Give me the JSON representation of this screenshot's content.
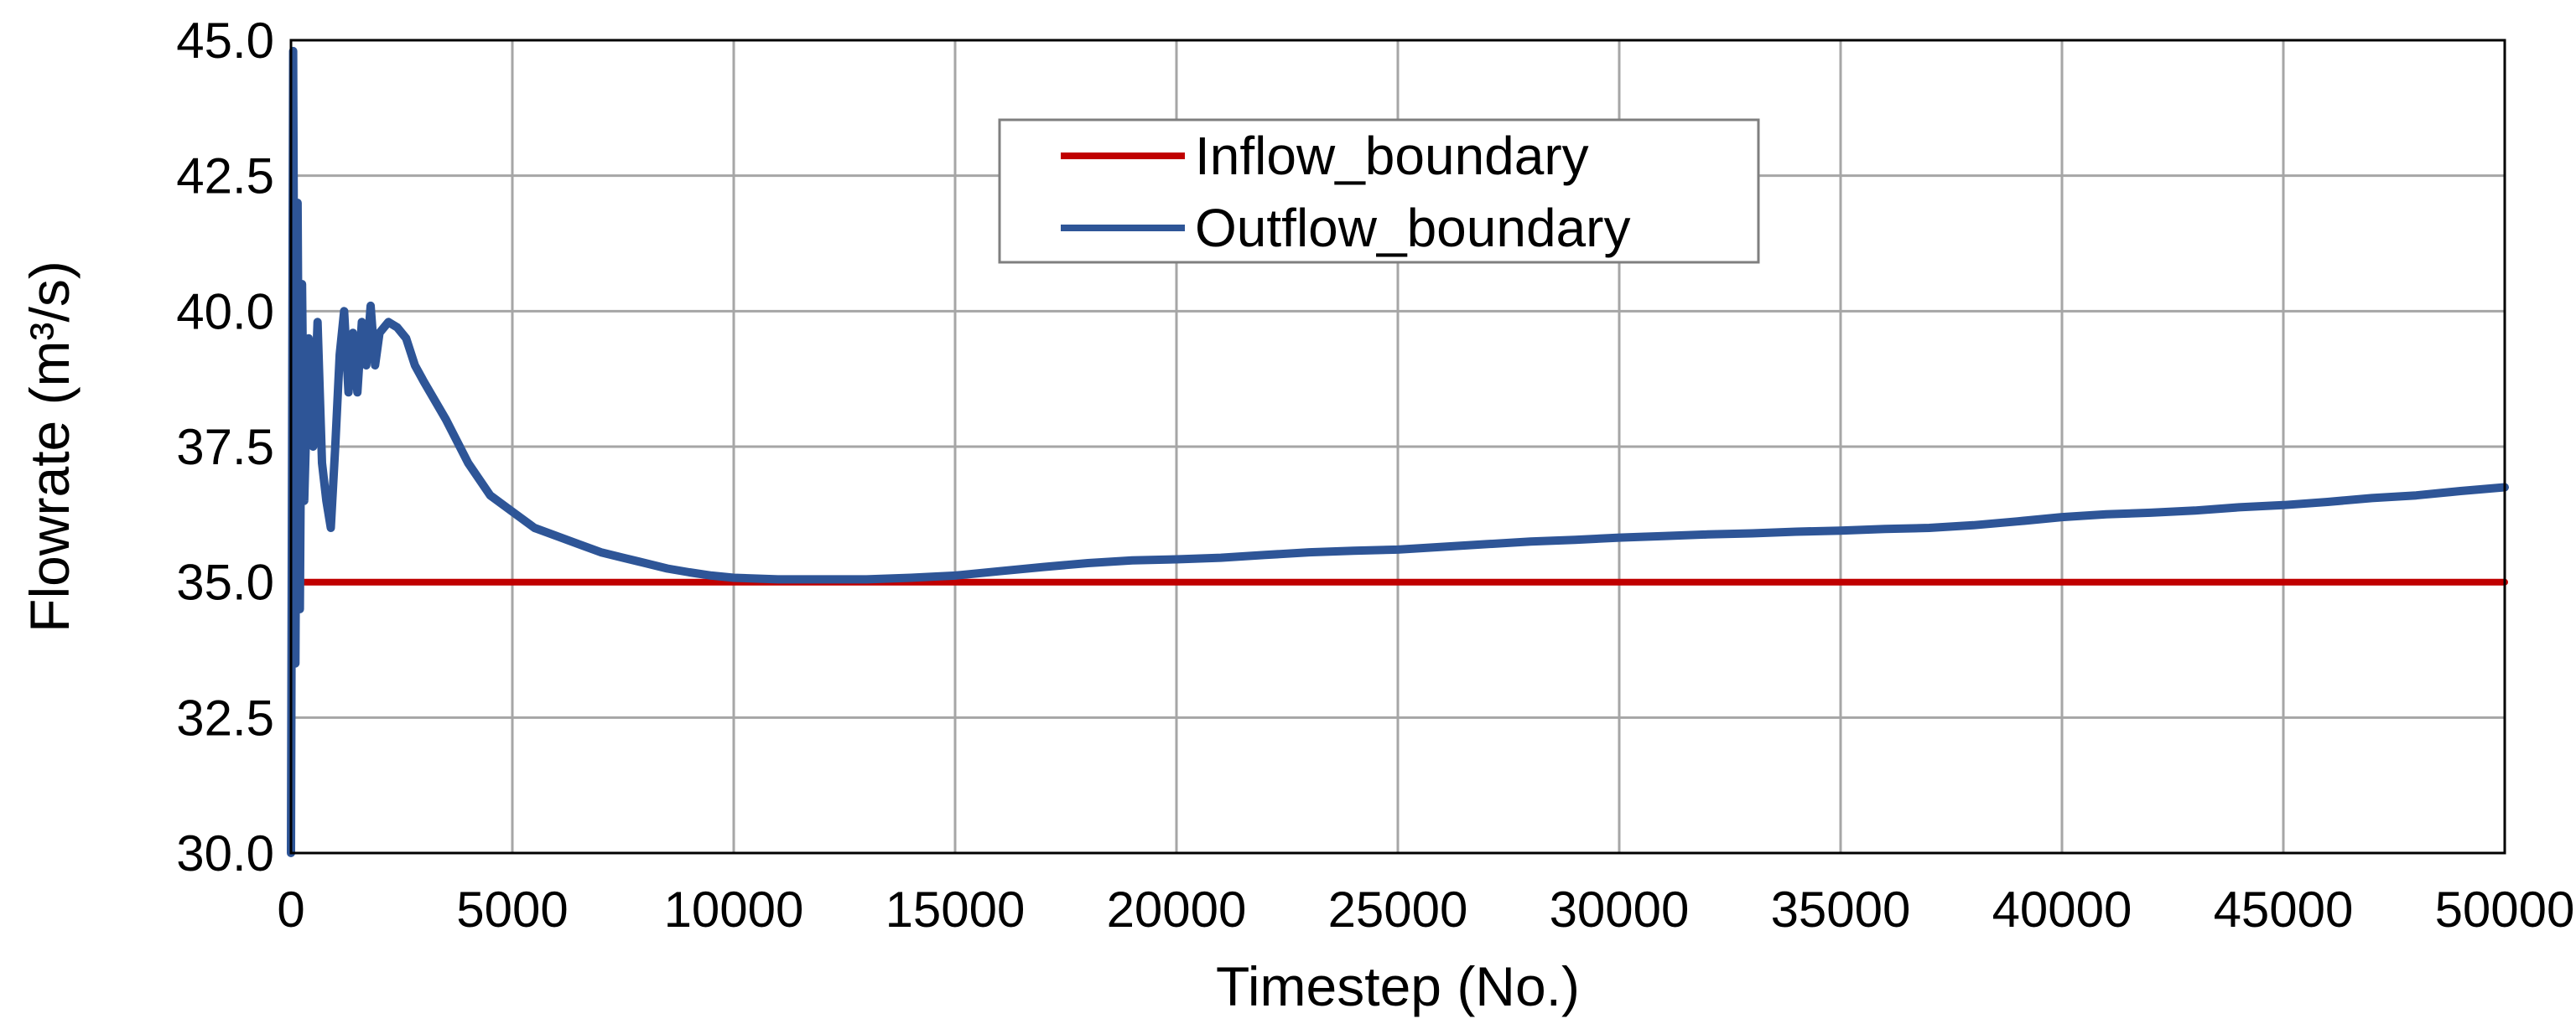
{
  "chart_data": {
    "type": "line",
    "title": "",
    "xlabel": "Timestep (No.)",
    "ylabel": "Flowrate (m³/s)",
    "xlim": [
      0,
      50000
    ],
    "ylim": [
      30.0,
      45.0
    ],
    "x_ticks": [
      "0",
      "5000",
      "10000",
      "15000",
      "20000",
      "25000",
      "30000",
      "35000",
      "40000",
      "45000",
      "50000"
    ],
    "y_ticks": [
      "30.0",
      "32.5",
      "35.0",
      "37.5",
      "40.0",
      "42.5",
      "45.0"
    ],
    "grid": true,
    "legend_position": "top-center",
    "series": [
      {
        "name": "Inflow_boundary",
        "color": "#c00000",
        "x": [
          0,
          50000
        ],
        "y": [
          35.0,
          35.0
        ]
      },
      {
        "name": "Outflow_boundary",
        "color": "#2e5597",
        "x": [
          0,
          50,
          100,
          150,
          200,
          250,
          300,
          400,
          500,
          600,
          700,
          800,
          900,
          1000,
          1100,
          1200,
          1300,
          1400,
          1500,
          1600,
          1700,
          1800,
          1900,
          2000,
          2200,
          2400,
          2600,
          2800,
          3000,
          3500,
          4000,
          4500,
          5000,
          5500,
          6000,
          6500,
          7000,
          7500,
          8000,
          8500,
          9000,
          9500,
          10000,
          11000,
          12000,
          13000,
          14000,
          15000,
          16000,
          17000,
          18000,
          19000,
          20000,
          21000,
          22000,
          23000,
          24000,
          25000,
          26000,
          27000,
          28000,
          29000,
          30000,
          31000,
          32000,
          33000,
          34000,
          35000,
          36000,
          37000,
          38000,
          39000,
          40000,
          41000,
          42000,
          43000,
          44000,
          45000,
          46000,
          47000,
          48000,
          49000,
          50000
        ],
        "y": [
          30.0,
          44.8,
          33.5,
          42.0,
          34.5,
          40.5,
          36.5,
          39.5,
          37.5,
          39.8,
          37.2,
          36.5,
          36.0,
          37.5,
          39.2,
          40.0,
          38.5,
          39.6,
          38.5,
          39.8,
          39.0,
          40.1,
          39.0,
          39.6,
          39.8,
          39.7,
          39.5,
          39.0,
          38.7,
          38.0,
          37.2,
          36.6,
          36.3,
          36.0,
          35.85,
          35.7,
          35.55,
          35.45,
          35.35,
          35.25,
          35.18,
          35.12,
          35.08,
          35.05,
          35.05,
          35.05,
          35.08,
          35.12,
          35.2,
          35.28,
          35.35,
          35.4,
          35.42,
          35.45,
          35.5,
          35.55,
          35.58,
          35.6,
          35.65,
          35.7,
          35.75,
          35.78,
          35.82,
          35.85,
          35.88,
          35.9,
          35.93,
          35.95,
          35.98,
          36.0,
          36.05,
          36.12,
          36.2,
          36.25,
          36.28,
          36.32,
          36.38,
          36.42,
          36.48,
          36.55,
          36.6,
          36.68,
          36.75
        ]
      }
    ]
  }
}
